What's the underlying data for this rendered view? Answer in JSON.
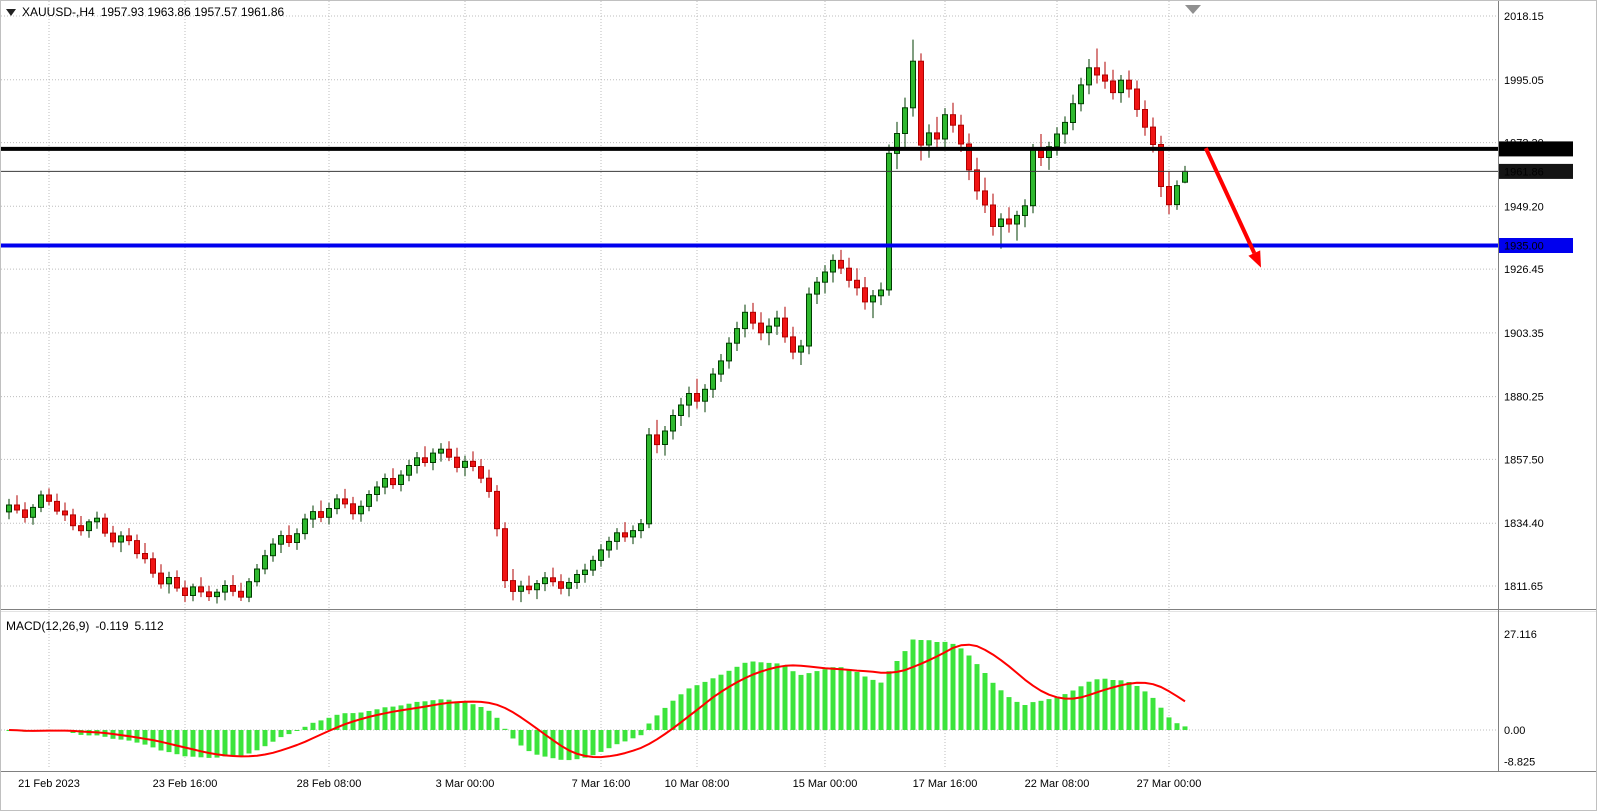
{
  "header": {
    "symbol": "XAUUSD-,H4",
    "ohlc": "1957.93 1963.86 1957.57 1961.86"
  },
  "chart_data": {
    "type": "candlestick",
    "symbol": "XAUUSD",
    "timeframe": "H4",
    "legend_position": "top-left",
    "grid": true,
    "colors": {
      "bull": "#2eb82e",
      "bull_border": "#003d00",
      "bear": "#f01414",
      "bear_border": "#b00000",
      "macd_bar": "#3ce43c",
      "signal": "#ff0000",
      "grid": "#bdbdbd",
      "axis_line": "#808080",
      "current_line": "#3a3a3a",
      "arrow": "#ff0000",
      "shift_marker": "#909090"
    },
    "price_axis": {
      "visible_min": 1803.3,
      "visible_max": 2023.6
    },
    "price_ticks": [
      {
        "price": 2018.15,
        "label": "2018.15"
      },
      {
        "price": 1995.05,
        "label": "1995.05"
      },
      {
        "price": 1972.3,
        "label": "1972.30"
      },
      {
        "price": 1949.2,
        "label": "1949.20"
      },
      {
        "price": 1926.45,
        "label": "1926.45"
      },
      {
        "price": 1903.35,
        "label": "1903.35"
      },
      {
        "price": 1880.25,
        "label": "1880.25"
      },
      {
        "price": 1857.5,
        "label": "1857.50"
      },
      {
        "price": 1834.4,
        "label": "1834.40"
      },
      {
        "price": 1811.65,
        "label": "1811.65"
      }
    ],
    "time_ticks": [
      {
        "i": 5,
        "label": "21 Feb 2023"
      },
      {
        "i": 22,
        "label": "23 Feb 16:00"
      },
      {
        "i": 40,
        "label": "28 Feb 08:00"
      },
      {
        "i": 57,
        "label": "3 Mar 00:00"
      },
      {
        "i": 74,
        "label": "7 Mar 16:00"
      },
      {
        "i": 86,
        "label": "10 Mar 08:00"
      },
      {
        "i": 102,
        "label": "15 Mar 00:00"
      },
      {
        "i": 117,
        "label": "17 Mar 16:00"
      },
      {
        "i": 131,
        "label": "22 Mar 08:00"
      },
      {
        "i": 145,
        "label": "27 Mar 00:00"
      }
    ],
    "hlines": [
      {
        "price": 1970.0,
        "label": "1970.00",
        "color": "#000000",
        "width": 4
      },
      {
        "price": 1935.0,
        "label": "1935.00",
        "color": "#0000ee",
        "width": 4
      }
    ],
    "current_price": {
      "value": 1961.86,
      "label": "1961.86",
      "badge_bg": "#141414"
    },
    "arrow": {
      "from_i": 149.6,
      "from_price": 1970.3,
      "to_i": 156.5,
      "to_price": 1927.0
    },
    "shift_marker_i": 148,
    "macd": {
      "name": "MACD(12,26,9)",
      "value": "-0.119",
      "signal_value": "5.112",
      "params": {
        "fast": 12,
        "slow": 26,
        "signal": 9
      },
      "range": {
        "min": -11,
        "max": 33
      },
      "ticks": [
        {
          "v": 27.116,
          "label": "27.116"
        },
        {
          "v": 0,
          "label": "0.00"
        },
        {
          "v": -8.825,
          "label": "-8.825"
        }
      ]
    },
    "candles": [
      [
        1838.5,
        1843.2,
        1835.8,
        1841.0
      ],
      [
        1841.0,
        1844.5,
        1837.9,
        1839.2
      ],
      [
        1839.2,
        1842.0,
        1834.6,
        1836.5
      ],
      [
        1836.5,
        1841.3,
        1833.8,
        1840.1
      ],
      [
        1840.1,
        1846.2,
        1838.4,
        1844.6
      ],
      [
        1844.6,
        1847.0,
        1840.9,
        1842.3
      ],
      [
        1842.3,
        1845.1,
        1837.5,
        1838.8
      ],
      [
        1838.8,
        1841.9,
        1835.2,
        1837.4
      ],
      [
        1837.4,
        1839.6,
        1831.8,
        1833.5
      ],
      [
        1833.5,
        1837.0,
        1829.9,
        1831.7
      ],
      [
        1831.7,
        1835.8,
        1829.1,
        1834.9
      ],
      [
        1834.9,
        1838.6,
        1832.4,
        1836.2
      ],
      [
        1836.2,
        1837.9,
        1829.5,
        1830.8
      ],
      [
        1830.8,
        1833.4,
        1825.7,
        1827.6
      ],
      [
        1827.6,
        1831.5,
        1823.9,
        1829.8
      ],
      [
        1829.8,
        1832.6,
        1826.4,
        1828.1
      ],
      [
        1828.1,
        1830.3,
        1821.6,
        1823.4
      ],
      [
        1823.4,
        1827.2,
        1819.8,
        1821.5
      ],
      [
        1821.5,
        1823.8,
        1814.6,
        1816.3
      ],
      [
        1816.3,
        1819.5,
        1810.7,
        1812.4
      ],
      [
        1812.4,
        1816.8,
        1808.9,
        1814.7
      ],
      [
        1814.7,
        1817.3,
        1809.6,
        1810.9
      ],
      [
        1810.9,
        1813.6,
        1805.8,
        1808.2
      ],
      [
        1808.2,
        1812.5,
        1806.1,
        1811.3
      ],
      [
        1811.3,
        1814.8,
        1807.6,
        1809.5
      ],
      [
        1809.5,
        1811.7,
        1806.2,
        1807.8
      ],
      [
        1807.8,
        1810.6,
        1805.3,
        1809.4
      ],
      [
        1809.4,
        1813.7,
        1806.4,
        1811.8
      ],
      [
        1811.8,
        1815.6,
        1807.9,
        1809.7
      ],
      [
        1809.7,
        1812.8,
        1806.2,
        1807.6
      ],
      [
        1807.6,
        1814.5,
        1805.8,
        1813.2
      ],
      [
        1813.2,
        1819.6,
        1811.5,
        1817.8
      ],
      [
        1817.8,
        1824.7,
        1815.9,
        1822.6
      ],
      [
        1822.6,
        1828.9,
        1820.4,
        1826.8
      ],
      [
        1826.8,
        1831.7,
        1823.6,
        1829.9
      ],
      [
        1829.9,
        1833.6,
        1825.8,
        1827.4
      ],
      [
        1827.4,
        1832.5,
        1824.7,
        1830.6
      ],
      [
        1830.6,
        1837.8,
        1828.5,
        1835.9
      ],
      [
        1835.9,
        1840.8,
        1832.7,
        1838.6
      ],
      [
        1838.6,
        1842.6,
        1834.8,
        1836.5
      ],
      [
        1836.5,
        1841.8,
        1833.9,
        1839.7
      ],
      [
        1839.7,
        1844.9,
        1837.6,
        1843.2
      ],
      [
        1843.2,
        1846.8,
        1839.8,
        1841.4
      ],
      [
        1841.4,
        1843.9,
        1835.7,
        1837.8
      ],
      [
        1837.8,
        1842.6,
        1834.9,
        1840.5
      ],
      [
        1840.5,
        1846.3,
        1838.7,
        1844.8
      ],
      [
        1844.8,
        1849.6,
        1842.3,
        1847.5
      ],
      [
        1847.5,
        1852.4,
        1844.9,
        1850.6
      ],
      [
        1850.6,
        1854.3,
        1846.8,
        1848.4
      ],
      [
        1848.4,
        1853.6,
        1845.9,
        1851.8
      ],
      [
        1851.8,
        1857.4,
        1849.6,
        1855.3
      ],
      [
        1855.3,
        1860.2,
        1852.4,
        1858.1
      ],
      [
        1858.1,
        1862.3,
        1854.9,
        1856.4
      ],
      [
        1856.4,
        1861.5,
        1853.6,
        1859.8
      ],
      [
        1859.8,
        1863.4,
        1856.7,
        1861.2
      ],
      [
        1861.2,
        1864.1,
        1856.9,
        1858.3
      ],
      [
        1858.3,
        1861.7,
        1852.8,
        1854.6
      ],
      [
        1854.6,
        1858.9,
        1851.4,
        1856.8
      ],
      [
        1856.8,
        1860.4,
        1853.2,
        1854.9
      ],
      [
        1854.9,
        1857.6,
        1848.9,
        1850.7
      ],
      [
        1850.7,
        1853.8,
        1843.6,
        1845.9
      ],
      [
        1845.9,
        1848.2,
        1829.6,
        1832.4
      ],
      [
        1832.4,
        1834.7,
        1810.9,
        1813.6
      ],
      [
        1813.6,
        1817.8,
        1806.4,
        1809.7
      ],
      [
        1809.7,
        1813.5,
        1805.8,
        1811.6
      ],
      [
        1811.6,
        1815.4,
        1808.7,
        1810.3
      ],
      [
        1810.3,
        1813.8,
        1806.9,
        1812.5
      ],
      [
        1812.5,
        1816.7,
        1809.8,
        1814.6
      ],
      [
        1814.6,
        1818.3,
        1811.5,
        1813.2
      ],
      [
        1813.2,
        1815.9,
        1808.6,
        1810.8
      ],
      [
        1810.8,
        1814.6,
        1807.9,
        1812.9
      ],
      [
        1812.9,
        1817.5,
        1810.6,
        1815.8
      ],
      [
        1815.8,
        1819.7,
        1812.8,
        1817.4
      ],
      [
        1817.4,
        1822.6,
        1815.3,
        1820.9
      ],
      [
        1820.9,
        1826.8,
        1818.6,
        1824.7
      ],
      [
        1824.7,
        1829.5,
        1821.9,
        1827.8
      ],
      [
        1827.8,
        1832.6,
        1824.8,
        1830.9
      ],
      [
        1830.9,
        1834.8,
        1827.6,
        1829.4
      ],
      [
        1829.4,
        1833.6,
        1826.8,
        1831.7
      ],
      [
        1831.7,
        1835.9,
        1828.9,
        1834.2
      ],
      [
        1834.2,
        1868.9,
        1832.6,
        1866.4
      ],
      [
        1866.4,
        1871.8,
        1859.7,
        1862.9
      ],
      [
        1862.9,
        1869.6,
        1858.9,
        1867.8
      ],
      [
        1867.8,
        1875.6,
        1864.7,
        1873.4
      ],
      [
        1873.4,
        1879.8,
        1869.6,
        1877.2
      ],
      [
        1877.2,
        1883.9,
        1872.8,
        1881.4
      ],
      [
        1881.4,
        1886.7,
        1875.9,
        1878.6
      ],
      [
        1878.6,
        1884.8,
        1874.6,
        1882.9
      ],
      [
        1882.9,
        1890.6,
        1879.8,
        1888.4
      ],
      [
        1888.4,
        1895.7,
        1885.6,
        1893.2
      ],
      [
        1893.2,
        1901.8,
        1890.4,
        1899.6
      ],
      [
        1899.6,
        1907.4,
        1896.8,
        1904.9
      ],
      [
        1904.9,
        1913.6,
        1901.7,
        1910.8
      ],
      [
        1910.8,
        1914.2,
        1904.6,
        1906.9
      ],
      [
        1906.9,
        1910.8,
        1900.7,
        1903.4
      ],
      [
        1903.4,
        1908.6,
        1898.9,
        1905.8
      ],
      [
        1905.8,
        1911.4,
        1902.6,
        1908.7
      ],
      [
        1908.7,
        1912.8,
        1899.8,
        1901.9
      ],
      [
        1901.9,
        1905.6,
        1893.8,
        1896.4
      ],
      [
        1896.4,
        1900.8,
        1891.7,
        1898.6
      ],
      [
        1898.6,
        1919.8,
        1895.6,
        1917.4
      ],
      [
        1917.4,
        1923.6,
        1913.8,
        1921.7
      ],
      [
        1921.7,
        1927.9,
        1917.6,
        1925.4
      ],
      [
        1925.4,
        1931.8,
        1921.6,
        1929.6
      ],
      [
        1929.6,
        1933.4,
        1924.7,
        1926.8
      ],
      [
        1926.8,
        1930.6,
        1919.8,
        1922.4
      ],
      [
        1922.4,
        1926.8,
        1916.9,
        1919.7
      ],
      [
        1919.7,
        1923.6,
        1911.8,
        1914.6
      ],
      [
        1914.6,
        1918.9,
        1908.7,
        1916.8
      ],
      [
        1916.8,
        1921.6,
        1913.4,
        1918.9
      ],
      [
        1918.9,
        1971.6,
        1916.8,
        1968.4
      ],
      [
        1968.4,
        1979.8,
        1962.7,
        1975.6
      ],
      [
        1975.6,
        1988.6,
        1969.8,
        1984.9
      ],
      [
        1984.9,
        2009.6,
        1981.7,
        2001.8
      ],
      [
        2001.8,
        2004.6,
        1965.8,
        1971.4
      ],
      [
        1971.4,
        1978.9,
        1966.8,
        1975.8
      ],
      [
        1975.8,
        1981.6,
        1970.4,
        1973.6
      ],
      [
        1973.6,
        1984.8,
        1969.7,
        1982.4
      ],
      [
        1982.4,
        1986.7,
        1975.9,
        1978.6
      ],
      [
        1978.6,
        1982.4,
        1968.9,
        1971.8
      ],
      [
        1971.8,
        1975.6,
        1958.7,
        1962.4
      ],
      [
        1962.4,
        1966.8,
        1951.6,
        1954.8
      ],
      [
        1954.8,
        1959.6,
        1946.8,
        1949.7
      ],
      [
        1949.7,
        1953.8,
        1938.6,
        1941.9
      ],
      [
        1941.9,
        1946.7,
        1933.9,
        1944.6
      ],
      [
        1944.6,
        1948.9,
        1939.7,
        1942.8
      ],
      [
        1942.8,
        1947.6,
        1936.8,
        1945.9
      ],
      [
        1945.9,
        1951.8,
        1941.6,
        1949.4
      ],
      [
        1949.4,
        1971.8,
        1946.7,
        1969.6
      ],
      [
        1969.6,
        1975.4,
        1963.8,
        1966.9
      ],
      [
        1966.9,
        1972.6,
        1962.4,
        1970.8
      ],
      [
        1970.8,
        1977.9,
        1967.6,
        1975.4
      ],
      [
        1975.4,
        1981.8,
        1971.9,
        1979.6
      ],
      [
        1979.6,
        1989.7,
        1976.8,
        1986.4
      ],
      [
        1986.4,
        1995.8,
        1983.6,
        1993.2
      ],
      [
        1993.2,
        2002.6,
        1989.8,
        1999.4
      ],
      [
        1999.4,
        2006.4,
        1993.7,
        1996.8
      ],
      [
        1996.8,
        2001.6,
        1991.8,
        1994.6
      ],
      [
        1994.6,
        1998.7,
        1987.9,
        1990.4
      ],
      [
        1990.4,
        1996.8,
        1986.7,
        1994.9
      ],
      [
        1994.9,
        1998.4,
        1988.6,
        1991.7
      ],
      [
        1991.7,
        1994.8,
        1981.6,
        1984.3
      ],
      [
        1984.3,
        1987.6,
        1974.8,
        1977.9
      ],
      [
        1977.9,
        1981.4,
        1968.7,
        1971.6
      ],
      [
        1971.6,
        1974.8,
        1952.6,
        1956.4
      ],
      [
        1956.4,
        1961.8,
        1946.4,
        1949.8
      ],
      [
        1949.8,
        1958.6,
        1947.9,
        1956.7
      ],
      [
        1957.93,
        1963.86,
        1957.57,
        1961.86
      ]
    ]
  }
}
